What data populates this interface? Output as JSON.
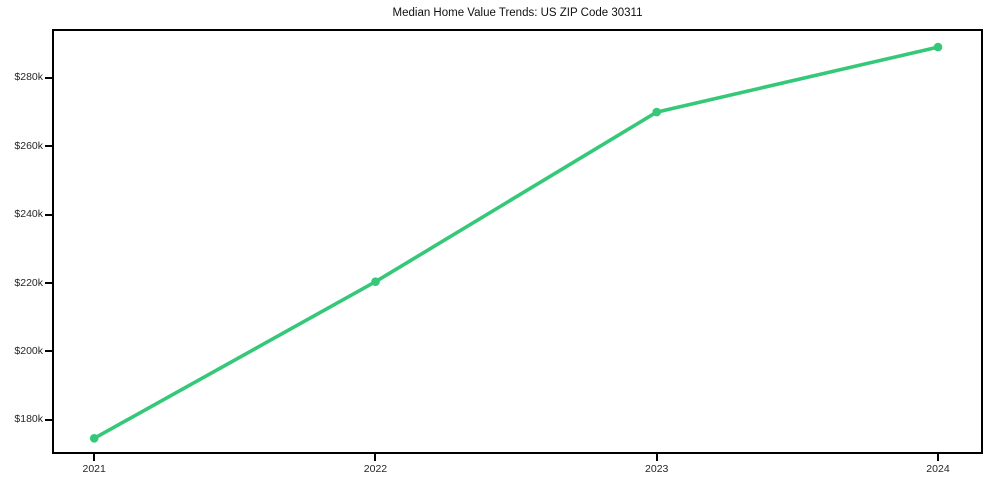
{
  "chart_data": {
    "type": "line",
    "title": "Median Home Value Trends: US ZIP Code 30311",
    "x": [
      2021,
      2022,
      2023,
      2024
    ],
    "x_tick_labels": [
      "2021",
      "2022",
      "2023",
      "2024"
    ],
    "values": [
      174600,
      220400,
      270000,
      289000
    ],
    "y_ticks": [
      180000,
      200000,
      220000,
      240000,
      260000,
      280000
    ],
    "y_tick_labels": [
      "$180k",
      "$200k",
      "$220k",
      "$240k",
      "$260k",
      "$280k"
    ],
    "xlim": [
      2020.85,
      2024.16
    ],
    "ylim": [
      170000,
      294300
    ],
    "xlabel": "",
    "ylabel": "",
    "grid": false,
    "legend": "none",
    "line_color": "#35c878",
    "marker_color": "#35c878",
    "marker_style": "circle",
    "axis_frame_color": "#000000",
    "tick_label_color": "#262626",
    "title_color": "#111111",
    "background_color": "#ffffff"
  }
}
